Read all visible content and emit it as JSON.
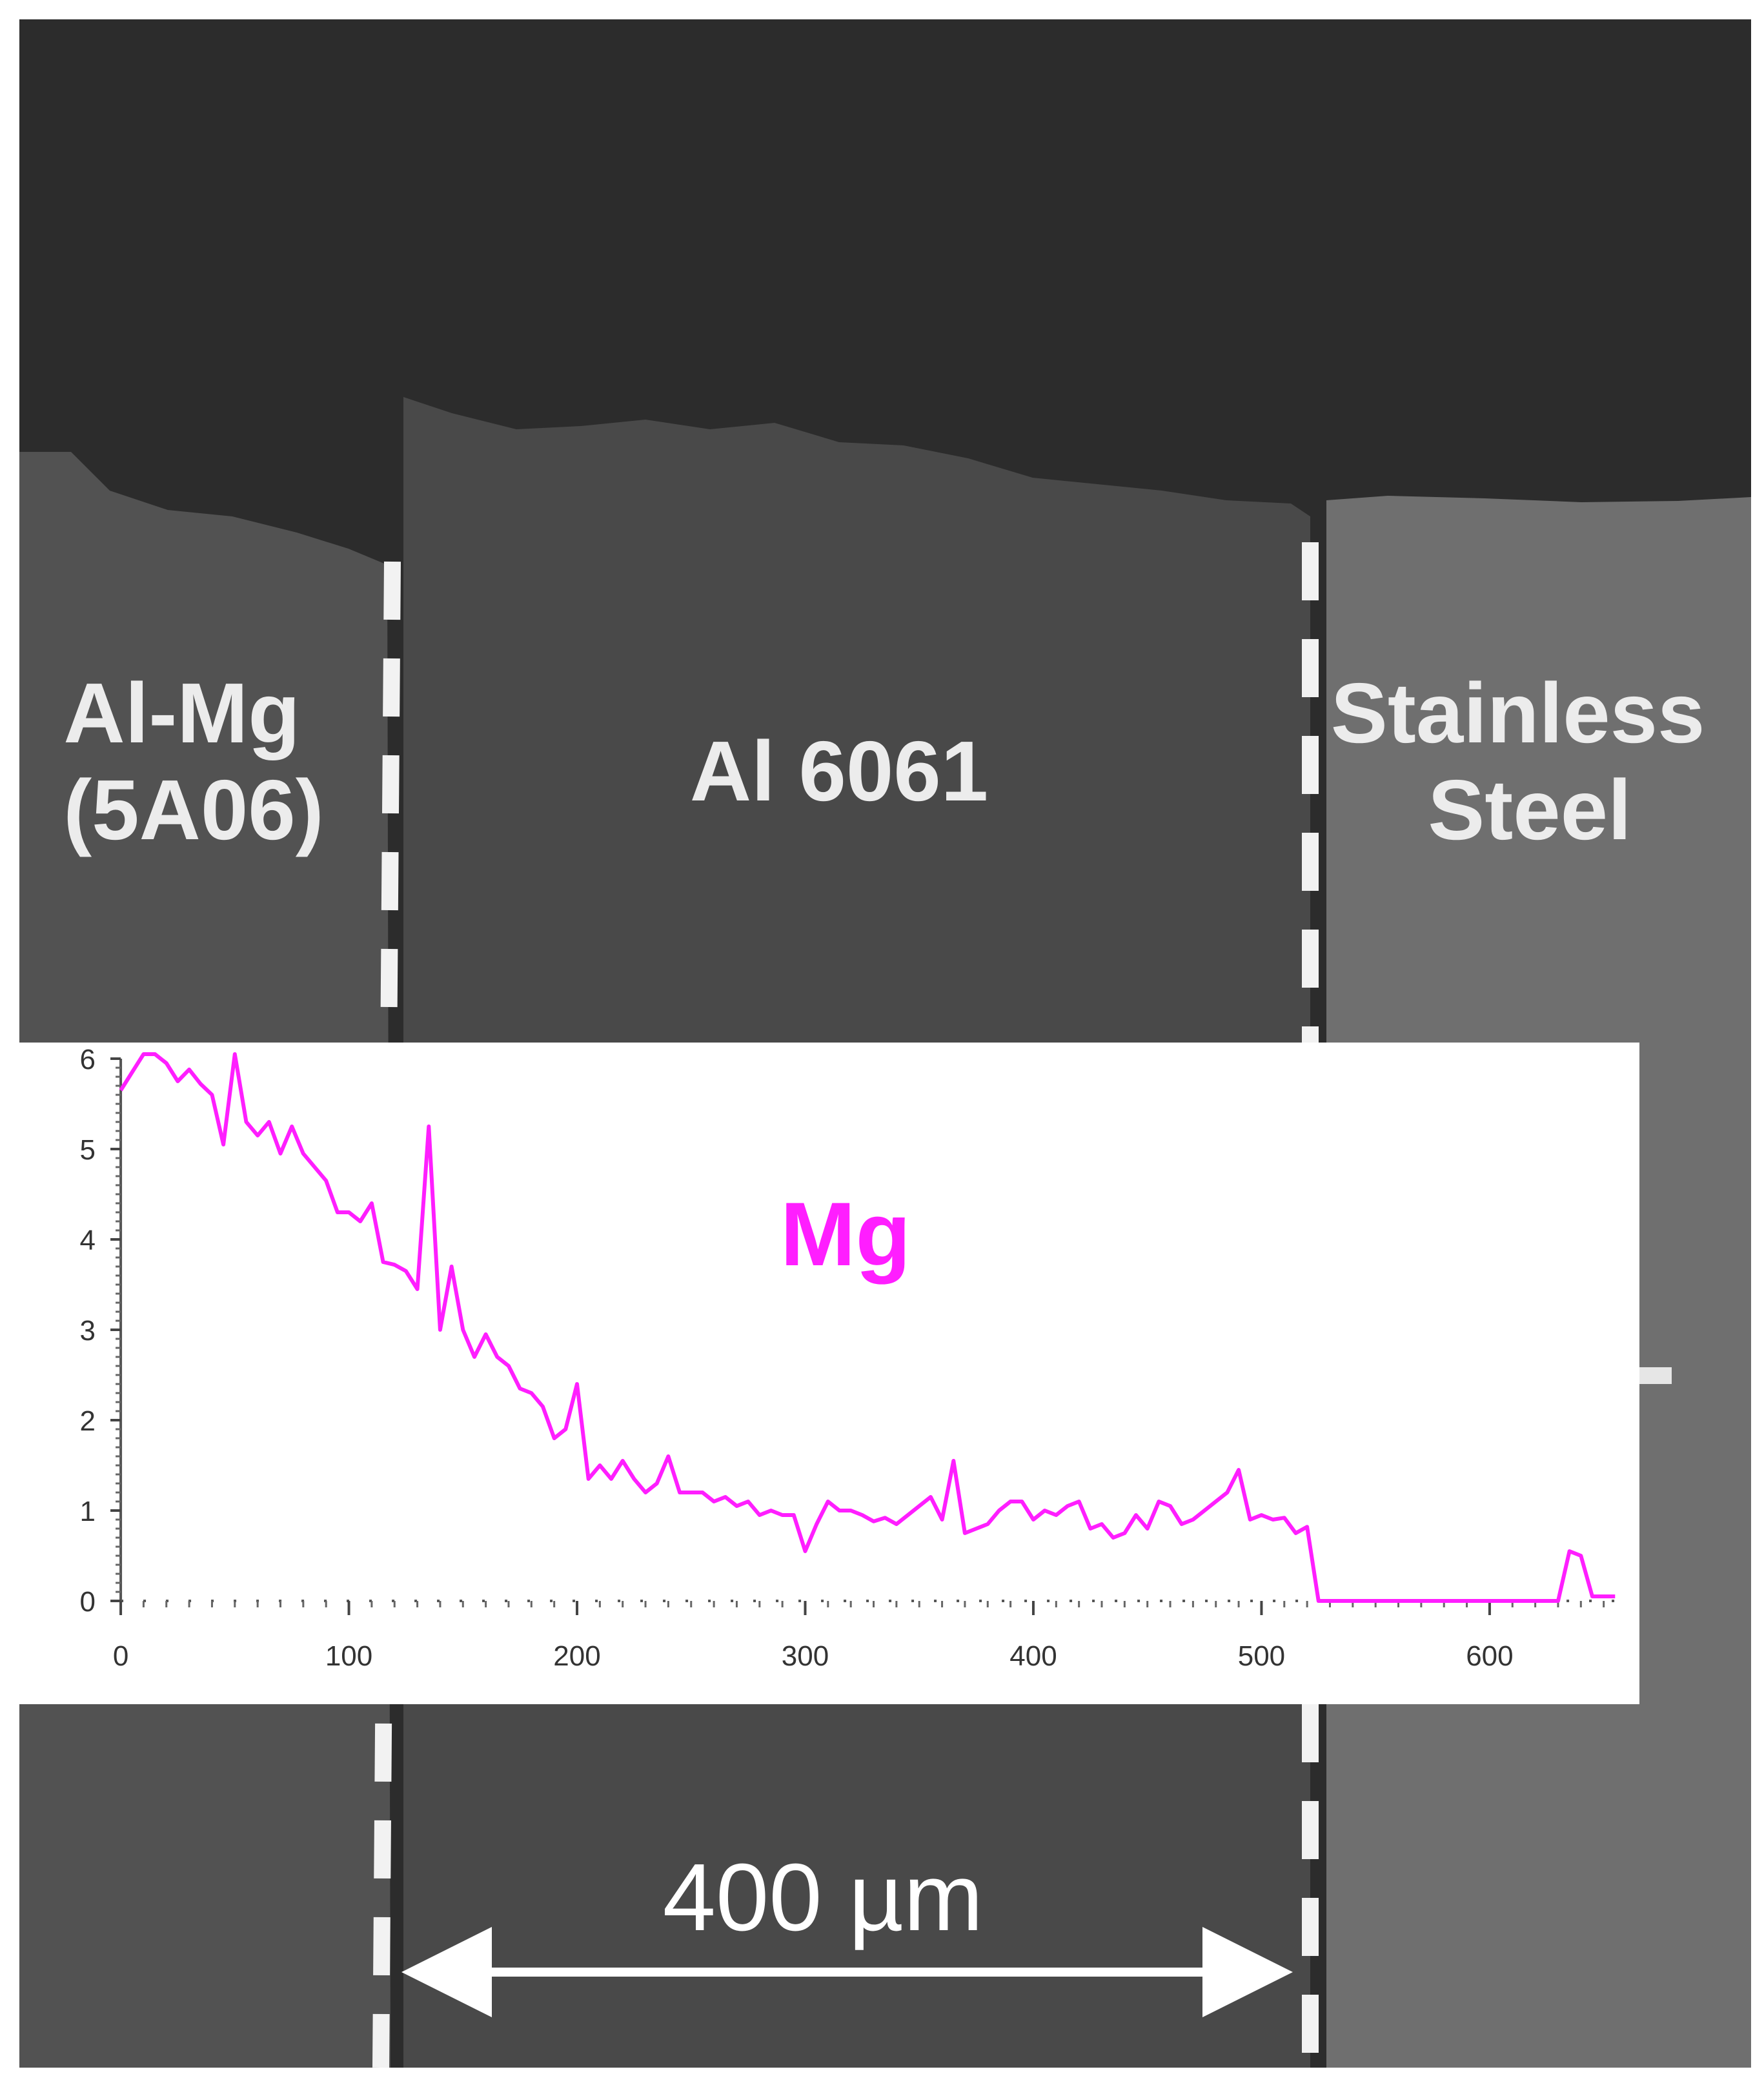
{
  "regions": [
    {
      "id": "al-mg",
      "lines": [
        "Al-Mg",
        "(5A06)"
      ]
    },
    {
      "id": "al6061",
      "lines": [
        "Al 6061"
      ]
    },
    {
      "id": "stainless",
      "lines": [
        "Stainless",
        "Steel"
      ]
    }
  ],
  "scale_bar": {
    "label": "400 µm"
  },
  "colors": {
    "mounting_resin": "#2c2c2c",
    "al_mg": "#525252",
    "al6061": "#494949",
    "stainless": "#6f6f6f",
    "boundary_dash": "#f2f2f2",
    "series": "#ff1eff"
  },
  "chart_data": {
    "type": "line",
    "title": "",
    "xlabel": "",
    "ylabel": "",
    "xlim": [
      -2,
      660
    ],
    "ylim": [
      0,
      6
    ],
    "x_ticks": [
      "0",
      "100",
      "200",
      "300",
      "400",
      "500",
      "600"
    ],
    "y_ticks": [
      "0",
      "1",
      "2",
      "3",
      "4",
      "5",
      "6"
    ],
    "series": [
      {
        "name": "Mg",
        "x": [
          0,
          5,
          10,
          15,
          20,
          25,
          30,
          35,
          40,
          45,
          50,
          55,
          60,
          65,
          70,
          75,
          80,
          85,
          90,
          95,
          100,
          105,
          110,
          115,
          120,
          125,
          130,
          135,
          140,
          145,
          150,
          155,
          160,
          165,
          170,
          175,
          180,
          185,
          190,
          195,
          200,
          205,
          210,
          215,
          220,
          225,
          230,
          235,
          240,
          245,
          250,
          255,
          260,
          265,
          270,
          275,
          280,
          285,
          290,
          295,
          300,
          305,
          310,
          315,
          320,
          325,
          330,
          335,
          340,
          345,
          350,
          355,
          360,
          365,
          370,
          375,
          380,
          385,
          390,
          395,
          400,
          405,
          410,
          415,
          420,
          425,
          430,
          435,
          440,
          445,
          450,
          455,
          460,
          465,
          470,
          475,
          480,
          485,
          490,
          495,
          500,
          505,
          510,
          515,
          520,
          525,
          530,
          540,
          550,
          560,
          570,
          580,
          590,
          600,
          610,
          620,
          630,
          635,
          640,
          645,
          650,
          655
        ],
        "y": [
          5.65,
          5.85,
          6.05,
          6.05,
          5.95,
          5.75,
          5.88,
          5.72,
          5.6,
          5.05,
          6.05,
          5.3,
          5.15,
          5.3,
          4.95,
          5.25,
          4.95,
          4.8,
          4.65,
          4.3,
          4.3,
          4.2,
          4.4,
          3.75,
          3.72,
          3.65,
          3.45,
          5.25,
          3.0,
          3.7,
          3.0,
          2.7,
          2.95,
          2.7,
          2.6,
          2.35,
          2.3,
          2.15,
          1.8,
          1.9,
          2.4,
          1.35,
          1.5,
          1.35,
          1.55,
          1.35,
          1.2,
          1.3,
          1.6,
          1.2,
          1.2,
          1.2,
          1.1,
          1.15,
          1.05,
          1.1,
          0.95,
          1.0,
          0.95,
          0.95,
          0.55,
          0.85,
          1.1,
          1.0,
          1.0,
          0.95,
          0.88,
          0.92,
          0.85,
          0.95,
          1.05,
          1.15,
          0.9,
          1.55,
          0.75,
          0.8,
          0.85,
          1.0,
          1.1,
          1.1,
          0.9,
          1.0,
          0.95,
          1.05,
          1.1,
          0.8,
          0.85,
          0.7,
          0.75,
          0.95,
          0.8,
          1.1,
          1.05,
          0.85,
          0.9,
          1.0,
          1.1,
          1.2,
          1.45,
          0.9,
          0.95,
          0.9,
          0.92,
          0.75,
          0.82,
          0.0,
          0.0,
          0.0,
          0.0,
          0.0,
          0.0,
          0.0,
          0.0,
          0.0,
          0.0,
          0.0,
          0.0,
          0.55,
          0.5,
          0.05,
          0.05,
          0.05
        ]
      }
    ]
  }
}
